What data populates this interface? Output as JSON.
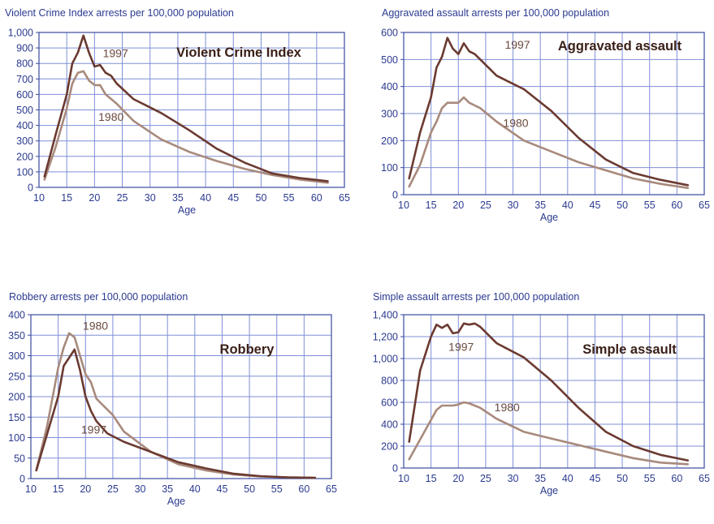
{
  "colors": {
    "line_1997": "#6b3a30",
    "line_1980": "#a88a7c",
    "grid": "#7f8fd6",
    "text": "#2b3a8f",
    "axis_frame": "#3a4aa0"
  },
  "chart_data": [
    {
      "type": "line",
      "title": "Violent Crime Index arrests per 100,000 population",
      "panel_label": "Violent Crime Index",
      "xlabel": "Age",
      "ylabel": "",
      "xlim": [
        10,
        65
      ],
      "ylim": [
        0,
        1000
      ],
      "xticks": [
        "10",
        "15",
        "20",
        "25",
        "30",
        "35",
        "40",
        "45",
        "50",
        "55",
        "60",
        "65"
      ],
      "yticks": [
        "0",
        "100",
        "200",
        "300",
        "400",
        "500",
        "600",
        "700",
        "800",
        "900",
        "1,000"
      ],
      "grid": true,
      "series": [
        {
          "name": "1997",
          "x": [
            11,
            13,
            15,
            16,
            17,
            18,
            19,
            20,
            21,
            22,
            23,
            24,
            27,
            32,
            37,
            42,
            47,
            52,
            57,
            62
          ],
          "y": [
            70,
            340,
            600,
            800,
            870,
            980,
            870,
            780,
            790,
            740,
            720,
            670,
            570,
            480,
            370,
            250,
            160,
            90,
            60,
            40
          ]
        },
        {
          "name": "1980",
          "x": [
            11,
            13,
            15,
            16,
            17,
            18,
            19,
            20,
            21,
            22,
            23,
            24,
            27,
            32,
            37,
            42,
            47,
            52,
            57,
            62
          ],
          "y": [
            50,
            260,
            510,
            670,
            740,
            750,
            690,
            660,
            660,
            600,
            570,
            540,
            430,
            310,
            230,
            170,
            120,
            80,
            50,
            30
          ]
        }
      ],
      "annotations": [
        {
          "text": "1997",
          "x": 21.5,
          "y": 840
        },
        {
          "text": "1980",
          "x": 20.7,
          "y": 430
        }
      ]
    },
    {
      "type": "line",
      "title": "Aggravated assault arrests per 100,000 population",
      "panel_label": "Aggravated assault",
      "xlabel": "Age",
      "ylabel": "",
      "xlim": [
        10,
        65
      ],
      "ylim": [
        0,
        600
      ],
      "xticks": [
        "10",
        "15",
        "20",
        "25",
        "30",
        "35",
        "40",
        "45",
        "50",
        "55",
        "60",
        "65"
      ],
      "yticks": [
        "0",
        "100",
        "200",
        "300",
        "400",
        "500",
        "600"
      ],
      "grid": true,
      "series": [
        {
          "name": "1997",
          "x": [
            11,
            13,
            15,
            16,
            17,
            18,
            19,
            20,
            21,
            22,
            23,
            24,
            27,
            32,
            37,
            42,
            47,
            52,
            57,
            62
          ],
          "y": [
            60,
            230,
            360,
            470,
            510,
            580,
            540,
            520,
            560,
            530,
            520,
            500,
            440,
            390,
            310,
            210,
            130,
            80,
            55,
            35
          ]
        },
        {
          "name": "1980",
          "x": [
            11,
            13,
            15,
            16,
            17,
            18,
            19,
            20,
            21,
            22,
            23,
            24,
            27,
            32,
            37,
            42,
            47,
            52,
            57,
            62
          ],
          "y": [
            30,
            110,
            230,
            270,
            320,
            340,
            340,
            340,
            360,
            340,
            330,
            320,
            270,
            200,
            160,
            120,
            90,
            60,
            40,
            25
          ]
        }
      ],
      "annotations": [
        {
          "text": "1997",
          "x": 28.5,
          "y": 540
        },
        {
          "text": "1980",
          "x": 28.2,
          "y": 250
        }
      ]
    },
    {
      "type": "line",
      "title": "Robbery arrests per 100,000 population",
      "panel_label": "Robbery",
      "xlabel": "Age",
      "ylabel": "",
      "xlim": [
        10,
        65
      ],
      "ylim": [
        0,
        400
      ],
      "xticks": [
        "10",
        "15",
        "20",
        "25",
        "30",
        "35",
        "40",
        "45",
        "50",
        "55",
        "60",
        "65"
      ],
      "yticks": [
        "0",
        "50",
        "100",
        "150",
        "200",
        "250",
        "300",
        "350",
        "400"
      ],
      "grid": true,
      "series": [
        {
          "name": "1980",
          "x": [
            11,
            13,
            15,
            16,
            17,
            18,
            19,
            20,
            21,
            22,
            25,
            27,
            32,
            37,
            42,
            47,
            52,
            57,
            62
          ],
          "y": [
            20,
            130,
            270,
            320,
            355,
            345,
            300,
            255,
            235,
            195,
            155,
            115,
            65,
            35,
            20,
            10,
            5,
            3,
            2
          ]
        },
        {
          "name": "1997",
          "x": [
            11,
            13,
            15,
            16,
            17,
            18,
            19,
            20,
            21,
            22,
            24,
            27,
            32,
            37,
            42,
            47,
            52,
            57,
            62
          ],
          "y": [
            20,
            110,
            200,
            275,
            295,
            315,
            265,
            200,
            165,
            140,
            110,
            90,
            65,
            40,
            25,
            12,
            6,
            3,
            2
          ]
        }
      ],
      "annotations": [
        {
          "text": "1980",
          "x": 19.5,
          "y": 363
        },
        {
          "text": "1997",
          "x": 19.2,
          "y": 110
        }
      ]
    },
    {
      "type": "line",
      "title": "Simple assault arrests per 100,000 population",
      "panel_label": "Simple assault",
      "xlabel": "Age",
      "ylabel": "",
      "xlim": [
        10,
        65
      ],
      "ylim": [
        0,
        1400
      ],
      "xticks": [
        "10",
        "15",
        "20",
        "25",
        "30",
        "35",
        "40",
        "45",
        "50",
        "55",
        "60",
        "65"
      ],
      "yticks": [
        "0",
        "200",
        "400",
        "600",
        "800",
        "1,000",
        "1,200",
        "1,400"
      ],
      "grid": true,
      "series": [
        {
          "name": "1997",
          "x": [
            11,
            13,
            15,
            16,
            17,
            18,
            19,
            20,
            21,
            22,
            23,
            24,
            27,
            32,
            37,
            42,
            47,
            52,
            57,
            62
          ],
          "y": [
            240,
            890,
            1200,
            1310,
            1280,
            1310,
            1230,
            1240,
            1320,
            1310,
            1320,
            1290,
            1140,
            1010,
            800,
            550,
            330,
            200,
            120,
            70
          ]
        },
        {
          "name": "1980",
          "x": [
            11,
            13,
            15,
            16,
            17,
            18,
            19,
            20,
            21,
            22,
            23,
            24,
            27,
            32,
            37,
            42,
            47,
            52,
            57,
            62
          ],
          "y": [
            80,
            260,
            440,
            530,
            570,
            570,
            570,
            580,
            600,
            590,
            570,
            550,
            450,
            330,
            270,
            210,
            150,
            90,
            50,
            35
          ]
        }
      ],
      "annotations": [
        {
          "text": "1997",
          "x": 18.2,
          "y": 1070
        },
        {
          "text": "1980",
          "x": 26.6,
          "y": 520
        }
      ]
    }
  ]
}
